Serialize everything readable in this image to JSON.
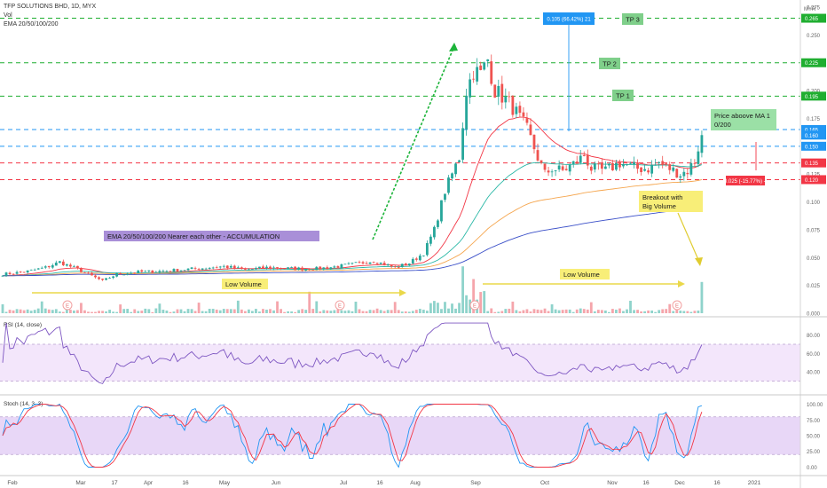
{
  "header": {
    "symbol_line": "TFP SOLUTIONS BHD, 1D, MYX",
    "vol_label": "Vol",
    "ema_label": "EMA 20/50/100/200",
    "currency": "MYR"
  },
  "chart_data": [
    {
      "type": "candlestick",
      "title": "TFP SOLUTIONS BHD, 1D, MYX",
      "ylim": [
        0,
        0.275
      ],
      "y_ticks": [
        "0.275",
        "0.250",
        "0.225",
        "0.200",
        "0.175",
        "0.150",
        "0.125",
        "0.100",
        "0.075",
        "0.050",
        "0.025",
        "0.000"
      ],
      "x_ticks": [
        "Feb",
        "Mar",
        "17",
        "Apr",
        "16",
        "May",
        "Jun",
        "Jul",
        "16",
        "Aug",
        "Sep",
        "Oct",
        "Nov",
        "16",
        "Dec",
        "16",
        "2021"
      ],
      "price_levels": [
        {
          "value": 0.265,
          "label": "0.265",
          "color": "#1fae30"
        },
        {
          "value": 0.225,
          "label": "0.225",
          "color": "#1fae30"
        },
        {
          "value": 0.195,
          "label": "0.195",
          "color": "#1fae30"
        },
        {
          "value": 0.165,
          "label": "0.165",
          "color": "#2196f3"
        },
        {
          "value": 0.15,
          "label": "0.150",
          "color": "#2196f3"
        },
        {
          "value": 0.135,
          "label": "0.135",
          "color": "#f23645"
        },
        {
          "value": 0.12,
          "label": "0.120",
          "color": "#f23645"
        }
      ],
      "last_price": {
        "value": 0.16,
        "label": "0.160",
        "color": "#2196f3"
      },
      "annotations": [
        "0.105 (66.42%) 21",
        "TP 3",
        "TP 2",
        "TP 1",
        "Price aboove MA 100/200",
        "-0.025 (-15.77%) -5",
        "Breakout with Big Volume",
        "EMA 20/50/100/200 Nearer each other - ACCUMULATION",
        "Low Volume",
        "Low Volume"
      ],
      "close_anchors": [
        [
          0,
          0.035
        ],
        [
          6,
          0.037
        ],
        [
          12,
          0.041
        ],
        [
          16,
          0.046
        ],
        [
          22,
          0.038
        ],
        [
          28,
          0.029
        ],
        [
          32,
          0.035
        ],
        [
          38,
          0.037
        ],
        [
          46,
          0.038
        ],
        [
          54,
          0.04
        ],
        [
          62,
          0.042
        ],
        [
          68,
          0.039
        ],
        [
          74,
          0.041
        ],
        [
          82,
          0.04
        ],
        [
          88,
          0.04
        ],
        [
          94,
          0.042
        ],
        [
          100,
          0.045
        ],
        [
          104,
          0.047
        ],
        [
          110,
          0.041
        ],
        [
          114,
          0.045
        ],
        [
          118,
          0.054
        ],
        [
          121,
          0.075
        ],
        [
          124,
          0.11
        ],
        [
          126,
          0.125
        ],
        [
          128,
          0.14
        ],
        [
          130,
          0.2
        ],
        [
          132,
          0.218
        ],
        [
          134,
          0.215
        ],
        [
          136,
          0.228
        ],
        [
          138,
          0.2
        ],
        [
          140,
          0.195
        ],
        [
          143,
          0.185
        ],
        [
          147,
          0.165
        ],
        [
          150,
          0.14
        ],
        [
          152,
          0.125
        ],
        [
          154,
          0.13
        ],
        [
          157,
          0.128
        ],
        [
          161,
          0.136
        ],
        [
          163,
          0.142
        ],
        [
          165,
          0.13
        ],
        [
          169,
          0.128
        ],
        [
          173,
          0.135
        ],
        [
          178,
          0.13
        ],
        [
          181,
          0.13
        ],
        [
          184,
          0.135
        ],
        [
          187,
          0.13
        ],
        [
          190,
          0.125
        ],
        [
          192,
          0.128
        ],
        [
          194,
          0.137
        ],
        [
          196,
          0.16
        ]
      ],
      "ema_colors": {
        "ema20": "#f23645",
        "ema50": "#2ab8a6",
        "ema100": "#f5a64f",
        "ema200": "#3a4fc8"
      }
    },
    {
      "type": "bar",
      "title": "Vol",
      "note": "volume histogram with spikes near Jul, late Aug and Dec breakout"
    },
    {
      "type": "line",
      "title": "RSI (14, close)",
      "ylim": [
        20,
        95
      ],
      "y_ticks": [
        "80.00",
        "60.00",
        "40.00"
      ],
      "band": [
        30,
        70
      ]
    },
    {
      "type": "line",
      "title": "Stoch (14, 3, 3)",
      "ylim": [
        -5,
        105
      ],
      "y_ticks": [
        "100.00",
        "75.00",
        "50.00",
        "25.00",
        "0.00"
      ],
      "band": [
        20,
        80
      ],
      "series": [
        {
          "color": "#2196f3"
        },
        {
          "color": "#f23645"
        }
      ]
    }
  ]
}
